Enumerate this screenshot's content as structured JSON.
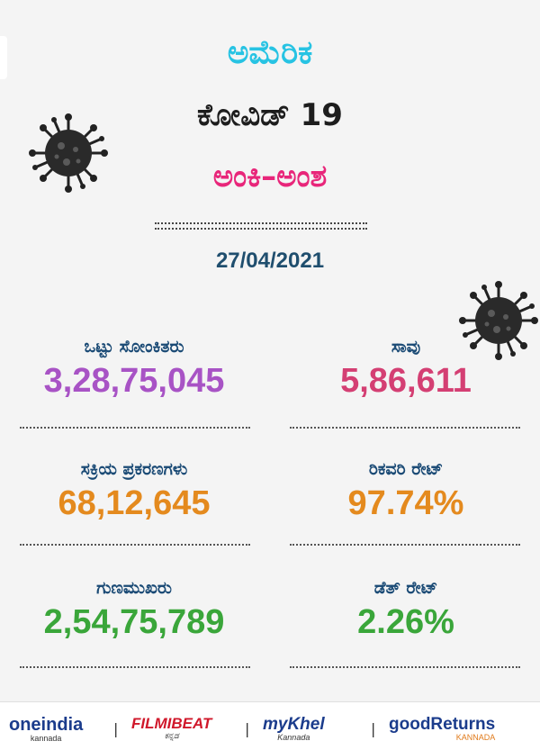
{
  "header": {
    "country": "ಅಮೆರಿಕ",
    "subject": "ಕೋವಿಡ್ 19",
    "section": "ಅಂಕಿ–ಅಂಶ",
    "date": "27/04/2021"
  },
  "stats": [
    {
      "label": "ಒಟ್ಟು ಸೋಂಕಿತರು",
      "value": "3,28,75,045",
      "color": "#a853c5"
    },
    {
      "label": "ಸಾವು",
      "value": "5,86,611",
      "color": "#d43f73"
    },
    {
      "label": "ಸಕ್ರಿಯ ಪ್ರಕರಣಗಳು",
      "value": "68,12,645",
      "color": "#e48a1e"
    },
    {
      "label": "ರಿಕವರಿ ರೇಟ್",
      "value": "97.74%",
      "color": "#e48a1e"
    },
    {
      "label": "ಗುಣಮುಖರು",
      "value": "2,54,75,789",
      "color": "#3aa63a"
    },
    {
      "label": "ಡೆತ್ ರೇಟ್",
      "value": "2.26%",
      "color": "#3aa63a"
    }
  ],
  "footer": {
    "brands": [
      {
        "name": "oneindia",
        "sub": "kannada"
      },
      {
        "name": "FILMIBEAT",
        "sub": "ಕನ್ನಡ"
      },
      {
        "name": "myKhel",
        "sub": "Kannada"
      },
      {
        "name": "goodReturns",
        "sub": "KANNADA"
      }
    ],
    "separator": "|"
  },
  "icons": [
    "virus-icon",
    "virus-icon"
  ]
}
